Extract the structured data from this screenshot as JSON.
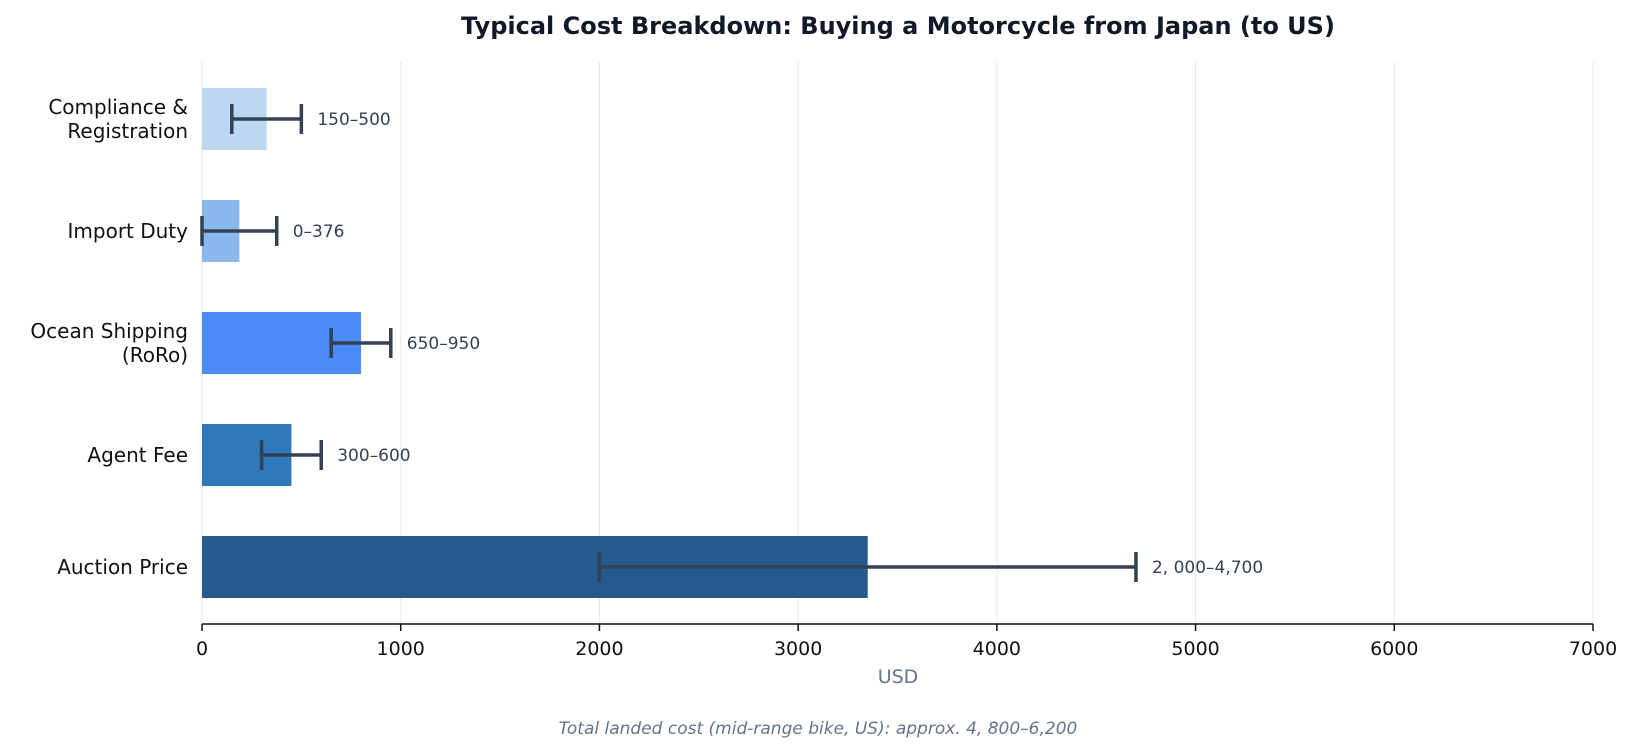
{
  "chart_data": {
    "type": "bar",
    "orientation": "horizontal",
    "title": "Typical Cost Breakdown: Buying a Motorcycle from Japan (to US)",
    "xlabel": "USD",
    "ylabel": "",
    "xlim": [
      0,
      7000
    ],
    "xticks": [
      0,
      1000,
      2000,
      3000,
      4000,
      5000,
      6000,
      7000
    ],
    "grid": "vertical",
    "categories": [
      [
        "Compliance &",
        "Registration"
      ],
      [
        "Import Duty"
      ],
      [
        "Ocean Shipping",
        "(RoRo)"
      ],
      [
        "Agent Fee"
      ],
      [
        "Auction Price"
      ]
    ],
    "values": [
      325,
      188,
      800,
      450,
      3350
    ],
    "ranges": [
      [
        150,
        500
      ],
      [
        0,
        376
      ],
      [
        650,
        950
      ],
      [
        300,
        600
      ],
      [
        2000,
        4700
      ]
    ],
    "range_labels": [
      "150–500",
      "0–376",
      "650–950",
      "300–600",
      "2, 000–4,700"
    ],
    "colors": [
      "#bcd7f2",
      "#89b8ec",
      "#4b8bf5",
      "#2f78b9",
      "#245b8c"
    ],
    "footnote": "Total landed cost (mid-range bike, US): approx. 4, 800–6,200"
  }
}
